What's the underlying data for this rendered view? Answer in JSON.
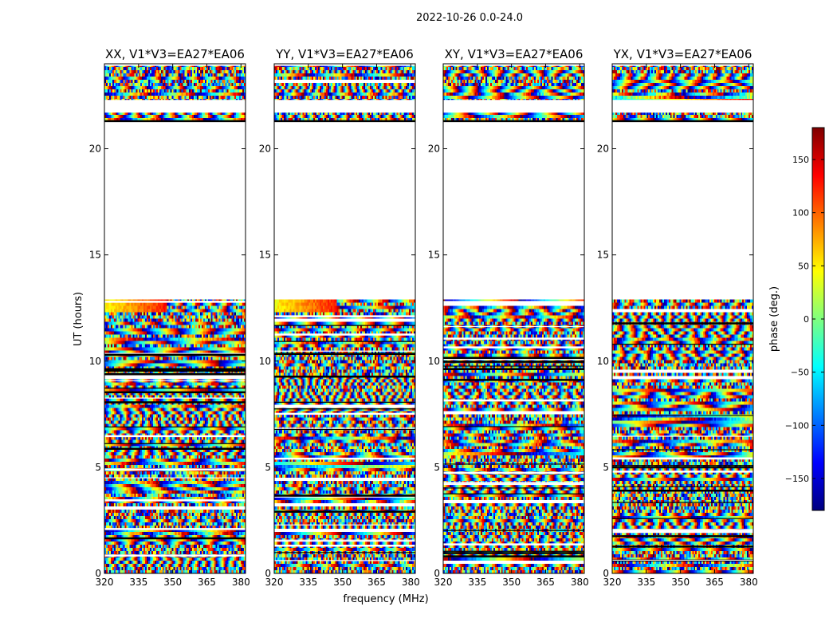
{
  "figure": {
    "suptitle": "2022-10-26 0.0-24.0",
    "ylabel": "UT (hours)",
    "xlabel": "frequency (MHz)"
  },
  "colorbar": {
    "label": "phase (deg.)",
    "ticks": [
      150,
      100,
      50,
      0,
      -50,
      -100,
      -150
    ],
    "tick_labels": [
      "150",
      "100",
      "50",
      "0",
      "−50",
      "−100",
      "−150"
    ],
    "range": [
      -180,
      180
    ],
    "colormap": "jet",
    "colormap_stops": [
      "#00007f",
      "#0000ff",
      "#007fff",
      "#00ffff",
      "#7fff7f",
      "#ffff00",
      "#ff7f00",
      "#ff0000",
      "#7f0000"
    ]
  },
  "chart_data": [
    {
      "type": "heatmap",
      "title": "XX, V1*V3=EA27*EA06",
      "x_ticks": [
        320,
        335,
        350,
        365,
        380
      ],
      "y_ticks": [
        0,
        5,
        10,
        15,
        20
      ],
      "xlim": [
        320,
        382
      ],
      "ylim": [
        0,
        24
      ],
      "value_unit": "phase (deg.)",
      "data_spans_hours": [
        [
          0.0,
          12.9
        ],
        [
          21.3,
          23.9
        ]
      ]
    },
    {
      "type": "heatmap",
      "title": "YY, V1*V3=EA27*EA06",
      "x_ticks": [
        320,
        335,
        350,
        365,
        380
      ],
      "y_ticks": [
        0,
        5,
        10,
        15,
        20
      ],
      "xlim": [
        320,
        382
      ],
      "ylim": [
        0,
        24
      ],
      "value_unit": "phase (deg.)",
      "data_spans_hours": [
        [
          0.0,
          12.9
        ],
        [
          21.3,
          23.9
        ]
      ]
    },
    {
      "type": "heatmap",
      "title": "XY, V1*V3=EA27*EA06",
      "x_ticks": [
        320,
        335,
        350,
        365,
        380
      ],
      "y_ticks": [
        0,
        5,
        10,
        15,
        20
      ],
      "xlim": [
        320,
        382
      ],
      "ylim": [
        0,
        24
      ],
      "value_unit": "phase (deg.)",
      "data_spans_hours": [
        [
          0.0,
          12.9
        ],
        [
          21.3,
          23.9
        ]
      ]
    },
    {
      "type": "heatmap",
      "title": "YX, V1*V3=EA27*EA06",
      "x_ticks": [
        320,
        335,
        350,
        365,
        380
      ],
      "y_ticks": [
        0,
        5,
        10,
        15,
        20
      ],
      "xlim": [
        320,
        382
      ],
      "ylim": [
        0,
        24
      ],
      "value_unit": "phase (deg.)",
      "data_spans_hours": [
        [
          0.0,
          12.9
        ],
        [
          21.3,
          23.9
        ]
      ]
    }
  ]
}
